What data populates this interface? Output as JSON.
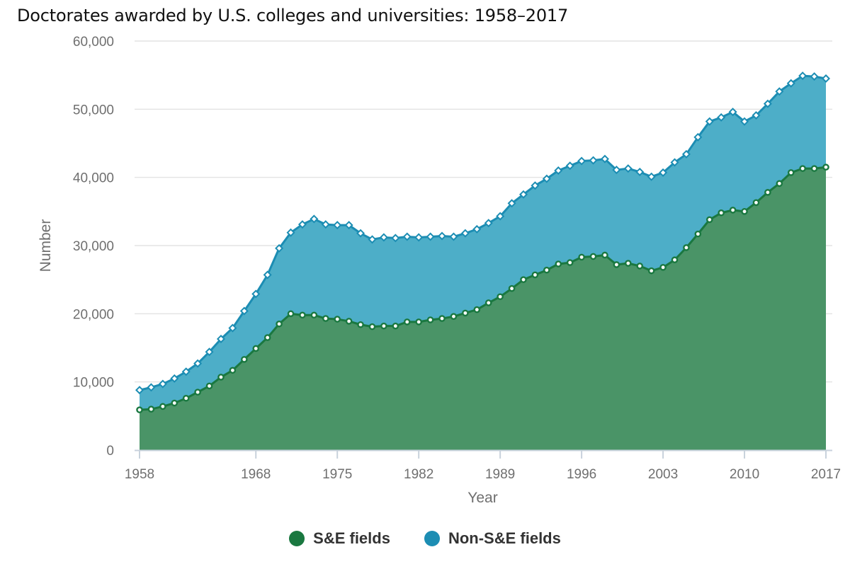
{
  "chart_data": {
    "type": "area",
    "stacked": true,
    "title": "Doctorates awarded by U.S. colleges and universities: 1958–2017",
    "xlabel": "Year",
    "ylabel": "Number",
    "x_ticks": [
      1958,
      1968,
      1975,
      1982,
      1989,
      1996,
      2003,
      2010,
      2017
    ],
    "y_ticks": [
      0,
      10000,
      20000,
      30000,
      40000,
      50000,
      60000
    ],
    "y_tick_labels": [
      "0",
      "10,000",
      "20,000",
      "30,000",
      "40,000",
      "50,000",
      "60,000"
    ],
    "x_tick_labels": [
      "1958",
      "1968",
      "1975",
      "1982",
      "1989",
      "1996",
      "2003",
      "2010",
      "2017"
    ],
    "ylim": [
      0,
      60000
    ],
    "xlim": [
      1958,
      2017
    ],
    "legend_position": "bottom-center",
    "x": [
      1958,
      1959,
      1960,
      1961,
      1962,
      1963,
      1964,
      1965,
      1966,
      1967,
      1968,
      1969,
      1970,
      1971,
      1972,
      1973,
      1974,
      1975,
      1976,
      1977,
      1978,
      1979,
      1980,
      1981,
      1982,
      1983,
      1984,
      1985,
      1986,
      1987,
      1988,
      1989,
      1990,
      1991,
      1992,
      1993,
      1994,
      1995,
      1996,
      1997,
      1998,
      1999,
      2000,
      2001,
      2002,
      2003,
      2004,
      2005,
      2006,
      2007,
      2008,
      2009,
      2010,
      2011,
      2012,
      2013,
      2014,
      2015,
      2016,
      2017
    ],
    "series": [
      {
        "name": "S&E fields",
        "color": "#1a7840",
        "fill": "#4a9467",
        "marker": "circle",
        "values": [
          5900,
          6000,
          6400,
          6900,
          7600,
          8500,
          9400,
          10700,
          11700,
          13300,
          14900,
          16500,
          18500,
          20000,
          19800,
          19800,
          19300,
          19200,
          18900,
          18400,
          18100,
          18200,
          18200,
          18800,
          18800,
          19100,
          19300,
          19600,
          20100,
          20600,
          21600,
          22500,
          23700,
          25000,
          25700,
          26400,
          27300,
          27500,
          28300,
          28400,
          28600,
          27200,
          27400,
          27000,
          26300,
          26800,
          27900,
          29700,
          31700,
          33800,
          34800,
          35200,
          35000,
          36300,
          37800,
          39100,
          40700,
          41300,
          41300,
          41500
        ]
      },
      {
        "name": "Non-S&E fields",
        "color": "#1c8db3",
        "fill": "#4daec8",
        "marker": "diamond",
        "values": [
          2900,
          3200,
          3300,
          3600,
          3900,
          4200,
          5000,
          5600,
          6200,
          7100,
          8000,
          9200,
          11100,
          11900,
          13300,
          14100,
          13800,
          13800,
          14100,
          13400,
          12800,
          13000,
          12900,
          12500,
          12400,
          12200,
          12100,
          11700,
          11700,
          11800,
          11700,
          11800,
          12500,
          12500,
          13100,
          13400,
          13700,
          14200,
          14100,
          14100,
          14100,
          13900,
          13900,
          13800,
          13800,
          13900,
          14300,
          13700,
          14200,
          14400,
          14000,
          14400,
          13200,
          12800,
          13000,
          13500,
          13100,
          13600,
          13500,
          13000
        ]
      }
    ]
  }
}
